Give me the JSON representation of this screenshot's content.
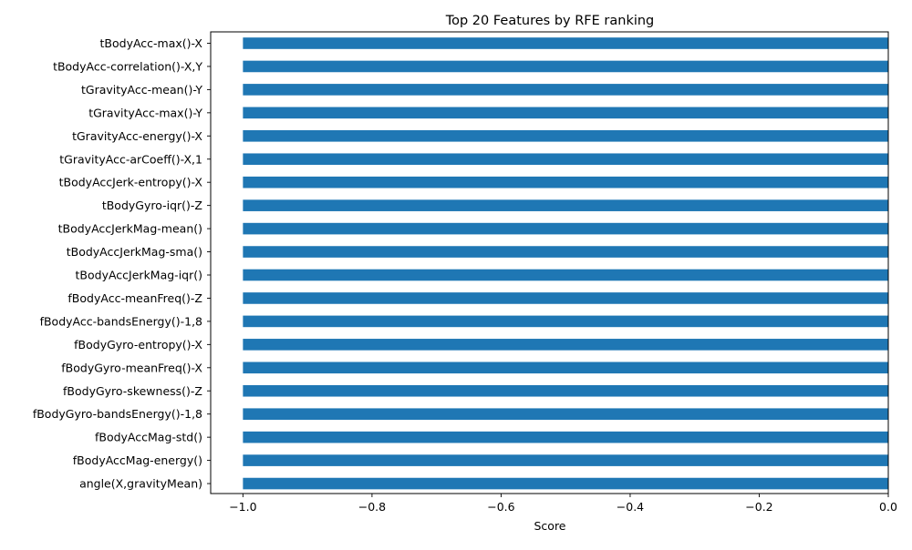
{
  "chart_data": {
    "type": "bar",
    "orientation": "horizontal",
    "title": "Top 20 Features by RFE ranking",
    "xlabel": "Score",
    "ylabel": "",
    "xlim": [
      -1.05,
      0.0
    ],
    "xticks": [
      -1.0,
      -0.8,
      -0.6,
      -0.4,
      -0.2,
      0.0
    ],
    "xtick_labels": [
      "−1.0",
      "−0.8",
      "−0.6",
      "−0.4",
      "−0.2",
      "0.0"
    ],
    "grid": false,
    "bar_color": "#1f77b4",
    "categories": [
      "tBodyAcc-max()-X",
      "tBodyAcc-correlation()-X,Y",
      "tGravityAcc-mean()-Y",
      "tGravityAcc-max()-Y",
      "tGravityAcc-energy()-X",
      "tGravityAcc-arCoeff()-X,1",
      "tBodyAccJerk-entropy()-X",
      "tBodyGyro-iqr()-Z",
      "tBodyAccJerkMag-mean()",
      "tBodyAccJerkMag-sma()",
      "tBodyAccJerkMag-iqr()",
      "fBodyAcc-meanFreq()-Z",
      "fBodyAcc-bandsEnergy()-1,8",
      "fBodyGyro-entropy()-X",
      "fBodyGyro-meanFreq()-X",
      "fBodyGyro-skewness()-Z",
      "fBodyGyro-bandsEnergy()-1,8",
      "fBodyAccMag-std()",
      "fBodyAccMag-energy()",
      "angle(X,gravityMean)"
    ],
    "values": [
      -1,
      -1,
      -1,
      -1,
      -1,
      -1,
      -1,
      -1,
      -1,
      -1,
      -1,
      -1,
      -1,
      -1,
      -1,
      -1,
      -1,
      -1,
      -1,
      -1
    ]
  }
}
